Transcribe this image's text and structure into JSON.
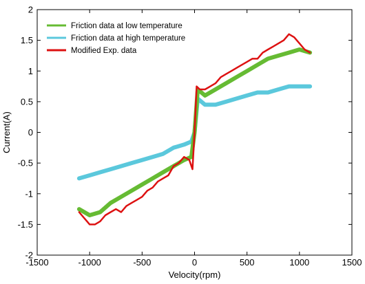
{
  "chart_data": {
    "type": "line",
    "xlabel": "Velocity(rpm)",
    "ylabel": "Current(A)",
    "xlim": [
      -1500,
      1500
    ],
    "ylim": [
      -2,
      2
    ],
    "xticks": [
      -1500,
      -1000,
      -500,
      0,
      500,
      1000,
      1500
    ],
    "yticks": [
      -2,
      -1.5,
      -1,
      -0.5,
      0,
      0.5,
      1,
      1.5,
      2
    ],
    "xtick_labels": [
      "-1500",
      "-1000",
      "-500",
      "0",
      "500",
      "1000",
      "1500"
    ],
    "ytick_labels": [
      "-2",
      "-1.5",
      "-1",
      "-0.5",
      "0",
      "0.5",
      "1",
      "1.5",
      "2"
    ],
    "grid": false,
    "legend_position": "top-left",
    "series": [
      {
        "name": "Friction data at low temperature",
        "color": "#66bb33",
        "x": [
          -1100,
          -1000,
          -900,
          -800,
          -700,
          -600,
          -500,
          -400,
          -300,
          -200,
          -100,
          -30,
          0,
          30,
          100,
          200,
          300,
          400,
          500,
          600,
          700,
          800,
          900,
          1000,
          1100
        ],
        "y": [
          -1.25,
          -1.35,
          -1.3,
          -1.15,
          -1.05,
          -0.95,
          -0.85,
          -0.75,
          -0.65,
          -0.55,
          -0.45,
          -0.4,
          0,
          0.7,
          0.6,
          0.7,
          0.8,
          0.9,
          1.0,
          1.1,
          1.2,
          1.25,
          1.3,
          1.35,
          1.3
        ]
      },
      {
        "name": "Friction data at high temperature",
        "color": "#5bc8dc",
        "x": [
          -1100,
          -1000,
          -900,
          -800,
          -700,
          -600,
          -500,
          -400,
          -300,
          -200,
          -100,
          -30,
          0,
          30,
          100,
          200,
          300,
          400,
          500,
          600,
          700,
          800,
          900,
          1000,
          1100
        ],
        "y": [
          -0.75,
          -0.7,
          -0.65,
          -0.6,
          -0.55,
          -0.5,
          -0.45,
          -0.4,
          -0.35,
          -0.25,
          -0.2,
          -0.15,
          0,
          0.55,
          0.45,
          0.45,
          0.5,
          0.55,
          0.6,
          0.65,
          0.65,
          0.7,
          0.75,
          0.75,
          0.75
        ]
      },
      {
        "name": "Modified  Exp. data",
        "color": "#dd1111",
        "x": [
          -1100,
          -1050,
          -1000,
          -950,
          -900,
          -850,
          -800,
          -750,
          -700,
          -650,
          -600,
          -550,
          -500,
          -450,
          -400,
          -350,
          -300,
          -250,
          -200,
          -150,
          -100,
          -50,
          -20,
          0,
          20,
          50,
          100,
          150,
          200,
          250,
          300,
          350,
          400,
          450,
          500,
          550,
          600,
          650,
          700,
          750,
          800,
          850,
          900,
          950,
          1000,
          1050,
          1100
        ],
        "y": [
          -1.3,
          -1.4,
          -1.5,
          -1.5,
          -1.45,
          -1.35,
          -1.3,
          -1.25,
          -1.3,
          -1.2,
          -1.15,
          -1.1,
          -1.05,
          -0.95,
          -0.9,
          -0.8,
          -0.75,
          -0.7,
          -0.55,
          -0.5,
          -0.4,
          -0.45,
          -0.6,
          0,
          0.75,
          0.7,
          0.7,
          0.75,
          0.8,
          0.9,
          0.95,
          1.0,
          1.05,
          1.1,
          1.15,
          1.2,
          1.2,
          1.3,
          1.35,
          1.4,
          1.45,
          1.5,
          1.6,
          1.55,
          1.45,
          1.35,
          1.3
        ]
      }
    ]
  }
}
